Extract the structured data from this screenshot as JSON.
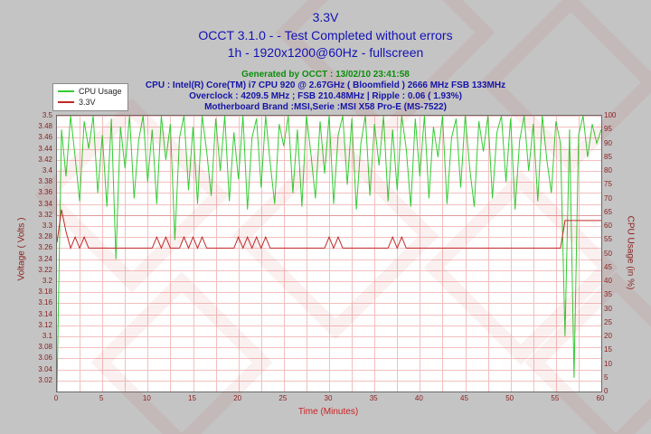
{
  "header": {
    "title": "3.3V",
    "subtitle": "OCCT 3.1.0 -  - Test Completed without errors",
    "subtitle2": "1h - 1920x1200@60Hz - fullscreen",
    "generated": "Generated by OCCT : 13/02/10 23:41:58",
    "cpu_info": "CPU : Intel(R) Core(TM) i7 CPU 920 @ 2.67GHz ( Bloomfield ) 2666 MHz FSB 133MHz",
    "overclock_info": "Overclock : 4209.5 MHz ; FSB 210.48MHz | Ripple : 0.06 ( 1.93%)",
    "motherboard_info": "Motherboard Brand :MSI,Serie :MSI X58 Pro-E (MS-7522)"
  },
  "legend": {
    "items": [
      {
        "label": "CPU Usage",
        "color": "#33cc33"
      },
      {
        "label": "3.3V",
        "color": "#c22828"
      }
    ]
  },
  "colors": {
    "title_blue": "#1212b6",
    "generated_green": "#0c8f0c",
    "axis_maroon": "#8b1f1f",
    "x_title_red": "#cc2222",
    "grid_pink": "#f3bfbf",
    "grid_pink_dark": "#df9a9a",
    "plot_background": "#ffffff",
    "page_background": "#c4c4c4"
  },
  "chart_data": {
    "type": "line",
    "title": "3.3V",
    "xlabel": "Time (Minutes)",
    "x_range": [
      0,
      60
    ],
    "x_ticks": [
      0,
      5,
      10,
      15,
      20,
      25,
      30,
      35,
      40,
      45,
      50,
      55,
      60
    ],
    "x_minor_grid_step": 2.5,
    "grid": true,
    "left_axis": {
      "label": "Voltage ( Volts )",
      "range": [
        3.0,
        3.5
      ],
      "tick_step": 0.02,
      "ticks": [
        3.5,
        3.48,
        3.46,
        3.44,
        3.42,
        3.4,
        3.38,
        3.36,
        3.34,
        3.32,
        3.3,
        3.28,
        3.26,
        3.24,
        3.22,
        3.2,
        3.18,
        3.16,
        3.14,
        3.12,
        3.1,
        3.08,
        3.06,
        3.04,
        3.02
      ],
      "emphasized_gridline": 3.32
    },
    "right_axis": {
      "label": "CPU Usage (in %)",
      "range": [
        0,
        100
      ],
      "tick_step": 5,
      "ticks": [
        100,
        95,
        90,
        85,
        80,
        75,
        70,
        65,
        60,
        55,
        50,
        45,
        40,
        35,
        30,
        25,
        20,
        15,
        10,
        5,
        0
      ]
    },
    "series": [
      {
        "name": "CPU Usage",
        "axis": "right",
        "color": "#33cc33",
        "x_start": 0,
        "x_step": 0.5,
        "values": [
          0,
          95,
          78,
          100,
          85,
          69,
          98,
          88,
          100,
          72,
          93,
          67,
          99,
          48,
          96,
          81,
          100,
          70,
          91,
          100,
          76,
          95,
          68,
          100,
          84,
          97,
          55,
          92,
          100,
          73,
          96,
          68,
          100,
          87,
          71,
          99,
          80,
          100,
          69,
          94,
          77,
          100,
          66,
          92,
          99,
          74,
          100,
          83,
          68,
          97,
          89,
          100,
          72,
          95,
          67,
          100,
          86,
          70,
          98,
          79,
          100,
          68,
          93,
          100,
          75,
          99,
          66,
          90,
          100,
          71,
          97,
          82,
          100,
          69,
          95,
          73,
          100,
          88,
          67,
          99,
          78,
          100,
          70,
          96,
          85,
          100,
          68,
          92,
          99,
          74,
          100,
          81,
          67,
          98,
          87,
          100,
          70,
          94,
          100,
          76,
          99,
          66,
          91,
          100,
          80,
          97,
          69,
          100,
          84,
          72,
          98,
          90,
          20,
          95,
          5,
          93,
          100,
          85,
          97,
          90,
          95
        ]
      },
      {
        "name": "3.3V",
        "axis": "left",
        "color": "#c22828",
        "x_start": 0,
        "x_step": 0.5,
        "values": [
          3.27,
          3.33,
          3.29,
          3.26,
          3.28,
          3.26,
          3.28,
          3.26,
          3.26,
          3.26,
          3.26,
          3.26,
          3.26,
          3.26,
          3.26,
          3.26,
          3.26,
          3.26,
          3.26,
          3.26,
          3.26,
          3.26,
          3.28,
          3.26,
          3.28,
          3.26,
          3.26,
          3.26,
          3.28,
          3.26,
          3.28,
          3.26,
          3.28,
          3.26,
          3.26,
          3.26,
          3.26,
          3.26,
          3.26,
          3.26,
          3.28,
          3.26,
          3.28,
          3.26,
          3.28,
          3.26,
          3.28,
          3.26,
          3.26,
          3.26,
          3.26,
          3.26,
          3.26,
          3.26,
          3.26,
          3.26,
          3.26,
          3.26,
          3.26,
          3.26,
          3.28,
          3.26,
          3.28,
          3.26,
          3.26,
          3.26,
          3.26,
          3.26,
          3.26,
          3.26,
          3.26,
          3.26,
          3.26,
          3.26,
          3.28,
          3.26,
          3.28,
          3.26,
          3.26,
          3.26,
          3.26,
          3.26,
          3.26,
          3.26,
          3.26,
          3.26,
          3.26,
          3.26,
          3.26,
          3.26,
          3.26,
          3.26,
          3.26,
          3.26,
          3.26,
          3.26,
          3.26,
          3.26,
          3.26,
          3.26,
          3.26,
          3.26,
          3.26,
          3.26,
          3.26,
          3.26,
          3.26,
          3.26,
          3.26,
          3.26,
          3.26,
          3.26,
          3.31,
          3.31,
          3.31,
          3.31,
          3.31,
          3.31,
          3.31,
          3.31,
          3.31
        ]
      }
    ]
  }
}
